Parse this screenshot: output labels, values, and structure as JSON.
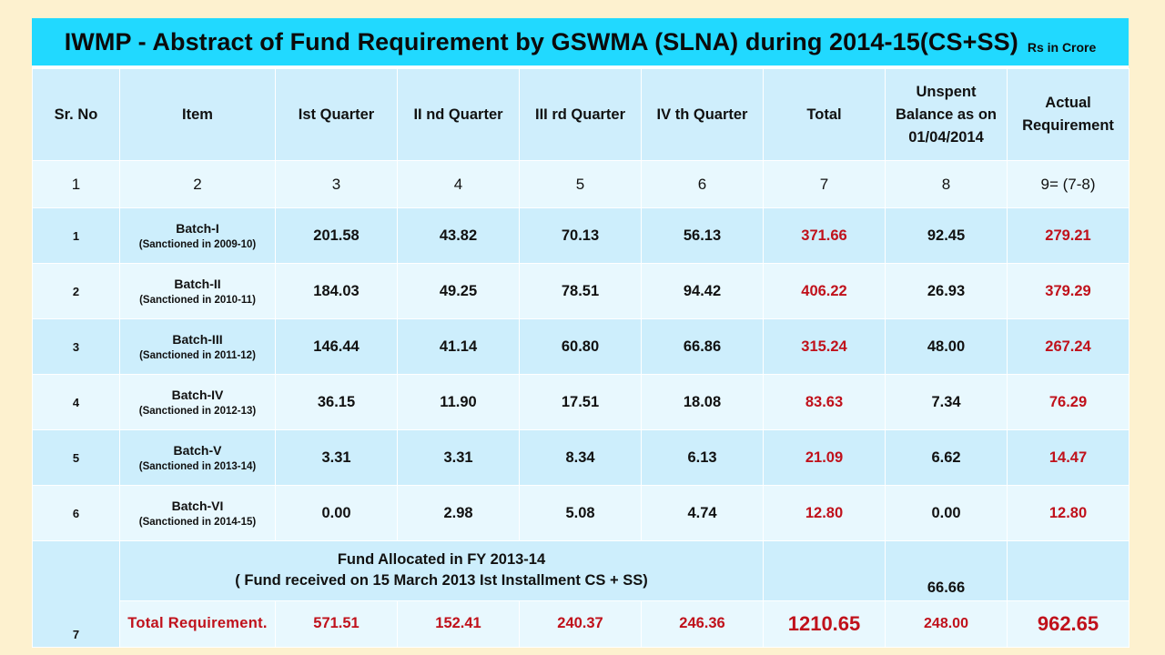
{
  "title": {
    "main": "IWMP - Abstract of Fund Requirement by GSWMA (SLNA) during 2014-15(CS+SS)",
    "unit": "Rs in Crore"
  },
  "colors": {
    "page_bg": "#fdf1cf",
    "title_bar": "#21d9ff",
    "row_dark": "#cdeefc",
    "row_light": "#e8f8fe",
    "highlight": "#c0111b"
  },
  "headers": [
    "Sr. No",
    "Item",
    "Ist Quarter",
    "II nd Quarter",
    "III rd Quarter",
    "IV th Quarter",
    "Total",
    "Unspent Balance as on 01/04/2014",
    "Actual Requirement"
  ],
  "column_numbers": [
    "1",
    "2",
    "3",
    "4",
    "5",
    "6",
    "7",
    "8",
    "9= (7-8)"
  ],
  "rows": [
    {
      "sr": "1",
      "item": "Batch-I",
      "sub": "(Sanctioned in 2009-10)",
      "q1": "201.58",
      "q2": "43.82",
      "q3": "70.13",
      "q4": "56.13",
      "total": "371.66",
      "unspent": "92.45",
      "actual": "279.21"
    },
    {
      "sr": "2",
      "item": "Batch-II",
      "sub": "(Sanctioned in 2010-11)",
      "q1": "184.03",
      "q2": "49.25",
      "q3": "78.51",
      "q4": "94.42",
      "total": "406.22",
      "unspent": "26.93",
      "actual": "379.29"
    },
    {
      "sr": "3",
      "item": "Batch-III",
      "sub": "(Sanctioned in 2011-12)",
      "q1": "146.44",
      "q2": "41.14",
      "q3": "60.80",
      "q4": "66.86",
      "total": "315.24",
      "unspent": "48.00",
      "actual": "267.24"
    },
    {
      "sr": "4",
      "item": "Batch-IV",
      "sub": "(Sanctioned in 2012-13)",
      "q1": "36.15",
      "q2": "11.90",
      "q3": "17.51",
      "q4": "18.08",
      "total": "83.63",
      "unspent": "7.34",
      "actual": "76.29"
    },
    {
      "sr": "5",
      "item": "Batch-V",
      "sub": "(Sanctioned in 2013-14)",
      "q1": "3.31",
      "q2": "3.31",
      "q3": "8.34",
      "q4": "6.13",
      "total": "21.09",
      "unspent": "6.62",
      "actual": "14.47"
    },
    {
      "sr": "6",
      "item": "Batch-VI",
      "sub": "(Sanctioned in 2014-15)",
      "q1": "0.00",
      "q2": "2.98",
      "q3": "5.08",
      "q4": "4.74",
      "total": "12.80",
      "unspent": "0.00",
      "actual": "12.80"
    }
  ],
  "fund_row": {
    "sr": "7",
    "line1": "Fund Allocated in FY 2013-14",
    "line2": "( Fund received on 15 March 2013 Ist Installment CS + SS)",
    "unspent": "66.66"
  },
  "total_row": {
    "label": "Total Requirement.",
    "q1": "571.51",
    "q2": "152.41",
    "q3": "240.37",
    "q4": "246.36",
    "total": "1210.65",
    "unspent": "248.00",
    "actual": "962.65"
  }
}
